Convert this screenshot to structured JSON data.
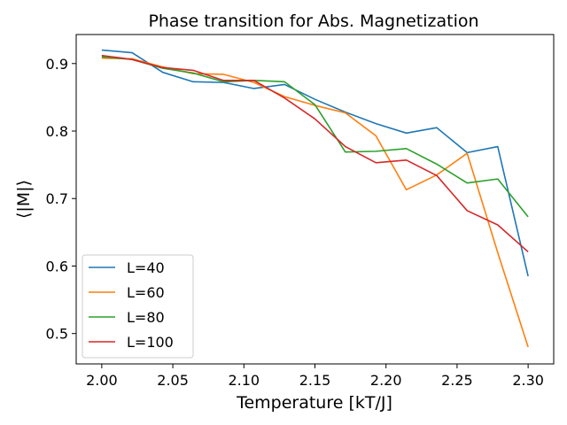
{
  "chart_data": {
    "type": "line",
    "title": "Phase transition for Abs. Magnetization",
    "xlabel": "Temperature [kT/J]",
    "ylabel": "⟨|M|⟩",
    "xlim": [
      1.982,
      2.318
    ],
    "ylim": [
      0.455,
      0.943
    ],
    "xticks": [
      2.0,
      2.05,
      2.1,
      2.15,
      2.2,
      2.25,
      2.3
    ],
    "xtick_labels": [
      "2.00",
      "2.05",
      "2.10",
      "2.15",
      "2.20",
      "2.25",
      "2.30"
    ],
    "yticks": [
      0.5,
      0.6,
      0.7,
      0.8,
      0.9
    ],
    "ytick_labels": [
      "0.5",
      "0.6",
      "0.7",
      "0.8",
      "0.9"
    ],
    "grid": false,
    "legend_position": "lower-left",
    "x": [
      2.0,
      2.0214,
      2.0429,
      2.0643,
      2.0857,
      2.1071,
      2.1286,
      2.15,
      2.1714,
      2.1929,
      2.2143,
      2.2357,
      2.2571,
      2.2786,
      2.3
    ],
    "series": [
      {
        "name": "L=40",
        "color": "#1f77b4",
        "values": [
          0.92,
          0.916,
          0.887,
          0.873,
          0.872,
          0.863,
          0.869,
          0.847,
          0.828,
          0.811,
          0.797,
          0.805,
          0.768,
          0.777,
          0.585
        ]
      },
      {
        "name": "L=60",
        "color": "#ff7f0e",
        "values": [
          0.908,
          0.907,
          0.895,
          0.885,
          0.884,
          0.872,
          0.851,
          0.838,
          0.827,
          0.793,
          0.713,
          0.735,
          0.767,
          0.62,
          0.48
        ]
      },
      {
        "name": "L=80",
        "color": "#2ca02c",
        "values": [
          0.91,
          0.906,
          0.893,
          0.886,
          0.873,
          0.875,
          0.873,
          0.839,
          0.769,
          0.77,
          0.774,
          0.751,
          0.723,
          0.729,
          0.673
        ]
      },
      {
        "name": "L=100",
        "color": "#d62728",
        "values": [
          0.912,
          0.906,
          0.894,
          0.89,
          0.875,
          0.875,
          0.849,
          0.818,
          0.777,
          0.753,
          0.757,
          0.734,
          0.682,
          0.661,
          0.621
        ]
      }
    ]
  }
}
